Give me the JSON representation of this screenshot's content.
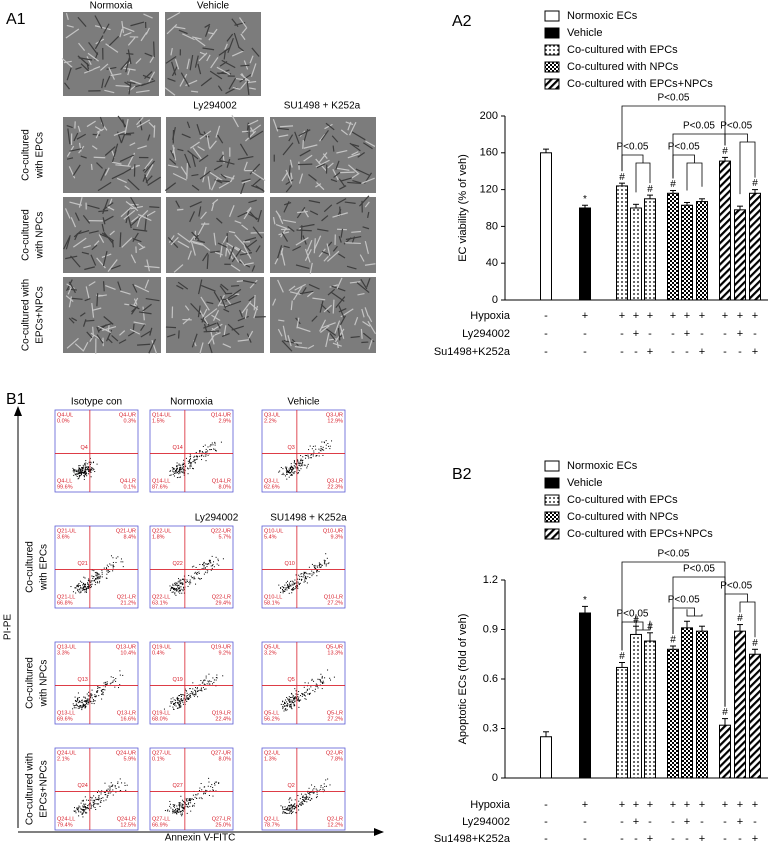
{
  "A1": {
    "panel": "A1",
    "top_labels": [
      "Normoxia",
      "Vehicle"
    ],
    "column_labels": [
      "Ly294002",
      "SU1498 + K252a"
    ],
    "row_labels": [
      [
        "Co-cultured",
        "with EPCs"
      ],
      [
        "Co-cultured",
        "with NPCs"
      ],
      [
        "Co-cultured with",
        "EPCs+NPCs"
      ]
    ]
  },
  "B1": {
    "panel": "B1",
    "top_labels": [
      "Isotype con",
      "Normoxia",
      "Vehicle"
    ],
    "column_labels": [
      "Ly294002",
      "SU1498 + K252a"
    ],
    "row_labels": [
      [
        "Co-cultured",
        "with EPCs"
      ],
      [
        "Co-cultured",
        "with NPCs"
      ],
      [
        "Co-cultured with",
        "EPCs+NPCs"
      ]
    ],
    "y_axis": "PI-PE",
    "x_axis": "Annexin V-FITC",
    "plots": [
      {
        "gate": "Q4",
        "quadrants": [
          {
            "name": "Q4-UL",
            "value": "0.0%"
          },
          {
            "name": "Q4-UR",
            "value": "0.3%"
          },
          {
            "name": "Q4-LL",
            "value": "99.6%"
          },
          {
            "name": "Q4-LR",
            "value": "0.1%"
          }
        ]
      },
      {
        "gate": "Q14",
        "quadrants": [
          {
            "name": "Q14-UL",
            "value": "1.5%"
          },
          {
            "name": "Q14-UR",
            "value": "2.9%"
          },
          {
            "name": "Q14-LL",
            "value": "87.6%"
          },
          {
            "name": "Q14-LR",
            "value": "8.0%"
          }
        ]
      },
      {
        "gate": "Q3",
        "quadrants": [
          {
            "name": "Q3-UL",
            "value": "2.2%"
          },
          {
            "name": "Q3-UR",
            "value": "12.9%"
          },
          {
            "name": "Q3-LL",
            "value": "62.6%"
          },
          {
            "name": "Q3-LR",
            "value": "22.3%"
          }
        ]
      },
      {
        "gate": "Q21",
        "quadrants": [
          {
            "name": "Q21-UL",
            "value": "3.6%"
          },
          {
            "name": "Q21-UR",
            "value": "8.4%"
          },
          {
            "name": "Q21-LL",
            "value": "66.8%"
          },
          {
            "name": "Q21-LR",
            "value": "21.2%"
          }
        ]
      },
      {
        "gate": "Q22",
        "quadrants": [
          {
            "name": "Q22-UL",
            "value": "1.8%"
          },
          {
            "name": "Q22-UR",
            "value": "5.7%"
          },
          {
            "name": "Q22-LL",
            "value": "63.1%"
          },
          {
            "name": "Q22-LR",
            "value": "29.4%"
          }
        ]
      },
      {
        "gate": "Q10",
        "quadrants": [
          {
            "name": "Q10-UL",
            "value": "5.4%"
          },
          {
            "name": "Q10-UR",
            "value": "9.3%"
          },
          {
            "name": "Q10-LL",
            "value": "58.1%"
          },
          {
            "name": "Q10-LR",
            "value": "27.2%"
          }
        ]
      },
      {
        "gate": "Q13",
        "quadrants": [
          {
            "name": "Q13-UL",
            "value": "3.3%"
          },
          {
            "name": "Q13-UR",
            "value": "10.4%"
          },
          {
            "name": "Q13-LL",
            "value": "69.6%"
          },
          {
            "name": "Q13-LR",
            "value": "16.6%"
          }
        ]
      },
      {
        "gate": "Q19",
        "quadrants": [
          {
            "name": "Q19-UL",
            "value": "0.4%"
          },
          {
            "name": "Q19-UR",
            "value": "9.2%"
          },
          {
            "name": "Q19-LL",
            "value": "68.0%"
          },
          {
            "name": "Q19-LR",
            "value": "22.4%"
          }
        ]
      },
      {
        "gate": "Q5",
        "quadrants": [
          {
            "name": "Q5-UL",
            "value": "3.2%"
          },
          {
            "name": "Q5-UR",
            "value": "13.3%"
          },
          {
            "name": "Q5-LL",
            "value": "56.2%"
          },
          {
            "name": "Q5-LR",
            "value": "27.2%"
          }
        ]
      },
      {
        "gate": "Q24",
        "quadrants": [
          {
            "name": "Q24-UL",
            "value": "2.1%"
          },
          {
            "name": "Q24-UR",
            "value": "5.9%"
          },
          {
            "name": "Q24-LL",
            "value": "79.4%"
          },
          {
            "name": "Q24-LR",
            "value": "12.5%"
          }
        ]
      },
      {
        "gate": "Q27",
        "quadrants": [
          {
            "name": "Q27-UL",
            "value": "0.1%"
          },
          {
            "name": "Q27-UR",
            "value": "8.0%"
          },
          {
            "name": "Q27-LL",
            "value": "66.9%"
          },
          {
            "name": "Q27-LR",
            "value": "25.0%"
          }
        ]
      },
      {
        "gate": "Q2",
        "quadrants": [
          {
            "name": "Q2-UL",
            "value": "1.3%"
          },
          {
            "name": "Q2-UR",
            "value": "7.8%"
          },
          {
            "name": "Q2-LL",
            "value": "78.7%"
          },
          {
            "name": "Q2-LR",
            "value": "12.2%"
          }
        ]
      }
    ]
  },
  "chart_data": [
    {
      "type": "bar",
      "panel": "A2",
      "ylabel": "EC viability (% of veh)",
      "ylim": [
        0,
        200
      ],
      "yticks": [
        0,
        40,
        80,
        120,
        160,
        200
      ],
      "grid": false,
      "series": [
        {
          "name": "Normoxic ECs",
          "color": "#ffffff",
          "values": [
            160,
            null,
            null,
            null,
            null,
            null,
            null,
            null,
            null,
            null,
            null
          ],
          "errors": [
            4,
            null,
            null,
            null,
            null,
            null,
            null,
            null,
            null,
            null,
            null
          ]
        },
        {
          "name": "Vehicle",
          "color": "#000000",
          "values": [
            null,
            100,
            null,
            null,
            null,
            null,
            null,
            null,
            null,
            null,
            null
          ],
          "errors": [
            null,
            3,
            null,
            null,
            null,
            null,
            null,
            null,
            null,
            null,
            null
          ]
        },
        {
          "name": "Co-cultured with EPCs",
          "color": "#000000",
          "values": [
            null,
            null,
            124,
            100,
            110,
            null,
            null,
            null,
            null,
            null,
            null
          ],
          "errors": [
            null,
            null,
            3,
            4,
            4,
            null,
            null,
            null,
            null,
            null,
            null
          ]
        },
        {
          "name": "Co-cultured with NPCs",
          "color": "#000000",
          "values": [
            null,
            null,
            null,
            null,
            null,
            116,
            103,
            107,
            null,
            null,
            null
          ],
          "errors": [
            null,
            null,
            null,
            null,
            null,
            3,
            3,
            3,
            null,
            null,
            null
          ]
        },
        {
          "name": "Co-cultured with EPCs+NPCs",
          "color": "#000000",
          "values": [
            null,
            null,
            null,
            null,
            null,
            null,
            null,
            null,
            151,
            98,
            116
          ],
          "errors": [
            null,
            null,
            null,
            null,
            null,
            null,
            null,
            null,
            4,
            4,
            4
          ]
        }
      ],
      "markers": [
        null,
        "*",
        "#",
        null,
        "#",
        "#",
        null,
        null,
        "#",
        null,
        "#"
      ],
      "brackets": [
        "P<0.05",
        "P<0.05",
        "P<0.05",
        "P<0.05",
        "P<0.05"
      ],
      "conditions": [
        {
          "name": "Hypoxia",
          "values": [
            "-",
            "+",
            "+",
            "+",
            "+",
            "+",
            "+",
            "+",
            "+",
            "+",
            "+"
          ]
        },
        {
          "name": "Ly294002",
          "values": [
            "-",
            "-",
            "-",
            "+",
            "-",
            "-",
            "+",
            "-",
            "-",
            "+",
            "-"
          ]
        },
        {
          "name": "Su1498+K252a",
          "values": [
            "-",
            "-",
            "-",
            "-",
            "+",
            "-",
            "-",
            "+",
            "-",
            "-",
            "+"
          ]
        }
      ]
    },
    {
      "type": "bar",
      "panel": "B2",
      "ylabel": "Apoptotic ECs (fold of veh)",
      "ylim": [
        0,
        1.2
      ],
      "yticks": [
        0,
        0.3,
        0.6,
        0.9,
        1.2
      ],
      "grid": false,
      "series": [
        {
          "name": "Normoxic ECs",
          "color": "#ffffff",
          "values": [
            0.25,
            null,
            null,
            null,
            null,
            null,
            null,
            null,
            null,
            null,
            null
          ],
          "errors": [
            0.03,
            null,
            null,
            null,
            null,
            null,
            null,
            null,
            null,
            null,
            null
          ]
        },
        {
          "name": "Vehicle",
          "color": "#000000",
          "values": [
            null,
            1.0,
            null,
            null,
            null,
            null,
            null,
            null,
            null,
            null,
            null
          ],
          "errors": [
            null,
            0.04,
            null,
            null,
            null,
            null,
            null,
            null,
            null,
            null,
            null
          ]
        },
        {
          "name": "Co-cultured with EPCs",
          "color": "#000000",
          "values": [
            null,
            null,
            0.67,
            0.87,
            0.83,
            null,
            null,
            null,
            null,
            null,
            null
          ],
          "errors": [
            null,
            null,
            0.03,
            0.05,
            0.05,
            null,
            null,
            null,
            null,
            null,
            null
          ]
        },
        {
          "name": "Co-cultured with NPCs",
          "color": "#000000",
          "values": [
            null,
            null,
            null,
            null,
            null,
            0.78,
            0.91,
            0.89,
            null,
            null,
            null
          ],
          "errors": [
            null,
            null,
            null,
            null,
            null,
            0.02,
            0.04,
            0.03,
            null,
            null,
            null
          ]
        },
        {
          "name": "Co-cultured with EPCs+NPCs",
          "color": "#000000",
          "values": [
            null,
            null,
            null,
            null,
            null,
            null,
            null,
            null,
            0.32,
            0.89,
            0.75
          ],
          "errors": [
            null,
            null,
            null,
            null,
            null,
            null,
            null,
            null,
            0.04,
            0.04,
            0.03
          ]
        }
      ],
      "markers": [
        null,
        "*",
        "#",
        "#",
        "#",
        "#",
        null,
        null,
        "#",
        "#",
        "#"
      ],
      "brackets": [
        "P<0.05",
        "P<0.05",
        "P<0.05",
        "P<0.05",
        "P<0.05"
      ],
      "conditions": [
        {
          "name": "Hypoxia",
          "values": [
            "-",
            "+",
            "+",
            "+",
            "+",
            "+",
            "+",
            "+",
            "+",
            "+",
            "+"
          ]
        },
        {
          "name": "Ly294002",
          "values": [
            "-",
            "-",
            "-",
            "+",
            "-",
            "-",
            "+",
            "-",
            "-",
            "+",
            "-"
          ]
        },
        {
          "name": "Su1498+K252a",
          "values": [
            "-",
            "-",
            "-",
            "-",
            "+",
            "-",
            "-",
            "+",
            "-",
            "-",
            "+"
          ]
        }
      ]
    }
  ]
}
